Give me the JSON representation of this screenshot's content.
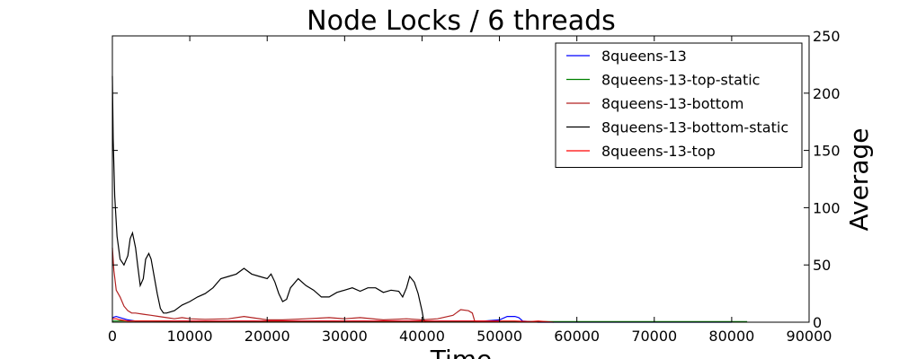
{
  "chart_data": {
    "type": "line",
    "title": "Node Locks / 6 threads",
    "xlabel": "Time",
    "ylabel": "Average",
    "xlim": [
      0,
      90000
    ],
    "ylim": [
      0,
      250
    ],
    "x_ticks": [
      0,
      10000,
      20000,
      30000,
      40000,
      50000,
      60000,
      70000,
      80000,
      90000
    ],
    "y_ticks": [
      0,
      50,
      100,
      150,
      200,
      250
    ],
    "x_tick_labels": [
      "0",
      "10000",
      "20000",
      "30000",
      "40000",
      "50000",
      "60000",
      "70000",
      "80000",
      "90000"
    ],
    "y_tick_labels": [
      "0",
      "50",
      "100",
      "150",
      "200",
      "250"
    ],
    "y_axis_side": "right",
    "grid": false,
    "legend_position": "top-right",
    "series": [
      {
        "name": "8queens-13",
        "color": "#0000ff",
        "points": [
          [
            0,
            4
          ],
          [
            500,
            5
          ],
          [
            1000,
            4
          ],
          [
            2000,
            2
          ],
          [
            3000,
            1
          ],
          [
            5000,
            1
          ],
          [
            10000,
            1
          ],
          [
            20000,
            1
          ],
          [
            30000,
            1
          ],
          [
            40000,
            1
          ],
          [
            45000,
            1
          ],
          [
            48000,
            1
          ],
          [
            50000,
            2
          ],
          [
            51000,
            5
          ],
          [
            52000,
            5
          ],
          [
            52500,
            4
          ],
          [
            53000,
            1
          ],
          [
            55000,
            0
          ],
          [
            60000,
            0
          ],
          [
            70000,
            0
          ],
          [
            80000,
            0
          ]
        ]
      },
      {
        "name": "8queens-13-top-static",
        "color": "#008000",
        "points": [
          [
            0,
            1
          ],
          [
            5000,
            1
          ],
          [
            10000,
            0.5
          ],
          [
            20000,
            0.5
          ],
          [
            30000,
            0.5
          ],
          [
            40000,
            0.5
          ],
          [
            50000,
            0.5
          ],
          [
            60000,
            0.5
          ],
          [
            70000,
            0.5
          ],
          [
            80000,
            0.5
          ],
          [
            82000,
            0.5
          ]
        ]
      },
      {
        "name": "8queens-13-bottom",
        "color": "#b22222",
        "points": [
          [
            0,
            65
          ],
          [
            200,
            45
          ],
          [
            500,
            28
          ],
          [
            1000,
            22
          ],
          [
            1500,
            14
          ],
          [
            2000,
            10
          ],
          [
            2500,
            8
          ],
          [
            3000,
            8
          ],
          [
            4000,
            7
          ],
          [
            5000,
            6
          ],
          [
            6000,
            5
          ],
          [
            7000,
            4
          ],
          [
            8000,
            3
          ],
          [
            9000,
            4
          ],
          [
            10000,
            3
          ],
          [
            12000,
            2.5
          ],
          [
            15000,
            3
          ],
          [
            17000,
            5
          ],
          [
            18000,
            4
          ],
          [
            20000,
            2
          ],
          [
            22000,
            2
          ],
          [
            25000,
            3
          ],
          [
            28000,
            4
          ],
          [
            30000,
            3
          ],
          [
            32000,
            4
          ],
          [
            35000,
            2
          ],
          [
            38000,
            3
          ],
          [
            40000,
            2
          ],
          [
            42000,
            3
          ],
          [
            44000,
            6
          ],
          [
            45000,
            11
          ],
          [
            46000,
            10
          ],
          [
            46500,
            8
          ],
          [
            46800,
            1
          ],
          [
            48000,
            0.5
          ],
          [
            50000,
            0.5
          ]
        ]
      },
      {
        "name": "8queens-13-bottom-static",
        "color": "#000000",
        "points": [
          [
            0,
            215
          ],
          [
            100,
            160
          ],
          [
            300,
            110
          ],
          [
            600,
            75
          ],
          [
            1000,
            55
          ],
          [
            1500,
            50
          ],
          [
            2000,
            58
          ],
          [
            2300,
            73
          ],
          [
            2600,
            78
          ],
          [
            3000,
            65
          ],
          [
            3300,
            48
          ],
          [
            3600,
            32
          ],
          [
            4000,
            38
          ],
          [
            4300,
            55
          ],
          [
            4700,
            60
          ],
          [
            5000,
            55
          ],
          [
            5400,
            40
          ],
          [
            5800,
            25
          ],
          [
            6200,
            12
          ],
          [
            6600,
            8
          ],
          [
            7000,
            8
          ],
          [
            8000,
            10
          ],
          [
            9000,
            15
          ],
          [
            10000,
            18
          ],
          [
            11000,
            22
          ],
          [
            12000,
            25
          ],
          [
            13000,
            30
          ],
          [
            14000,
            38
          ],
          [
            15000,
            40
          ],
          [
            16000,
            42
          ],
          [
            17000,
            47
          ],
          [
            18000,
            42
          ],
          [
            19000,
            40
          ],
          [
            20000,
            38
          ],
          [
            20500,
            42
          ],
          [
            21000,
            35
          ],
          [
            21500,
            25
          ],
          [
            22000,
            18
          ],
          [
            22500,
            20
          ],
          [
            23000,
            30
          ],
          [
            24000,
            38
          ],
          [
            25000,
            32
          ],
          [
            26000,
            28
          ],
          [
            27000,
            22
          ],
          [
            28000,
            22
          ],
          [
            29000,
            26
          ],
          [
            30000,
            28
          ],
          [
            31000,
            30
          ],
          [
            32000,
            27
          ],
          [
            33000,
            30
          ],
          [
            34000,
            30
          ],
          [
            35000,
            26
          ],
          [
            36000,
            28
          ],
          [
            37000,
            27
          ],
          [
            37500,
            22
          ],
          [
            38000,
            30
          ],
          [
            38400,
            40
          ],
          [
            39000,
            35
          ],
          [
            39500,
            25
          ],
          [
            40000,
            10
          ],
          [
            40200,
            2
          ],
          [
            40500,
            0
          ]
        ]
      },
      {
        "name": "8queens-13-top",
        "color": "#ff0000",
        "points": [
          [
            0,
            3
          ],
          [
            500,
            3
          ],
          [
            1000,
            2
          ],
          [
            2000,
            1
          ],
          [
            5000,
            1
          ],
          [
            10000,
            1
          ],
          [
            20000,
            1
          ],
          [
            30000,
            1
          ],
          [
            40000,
            1
          ],
          [
            45000,
            1
          ],
          [
            50000,
            1
          ],
          [
            52000,
            1
          ],
          [
            54000,
            0.5
          ],
          [
            55000,
            1
          ],
          [
            56000,
            0.5
          ],
          [
            57000,
            0
          ]
        ]
      }
    ]
  }
}
